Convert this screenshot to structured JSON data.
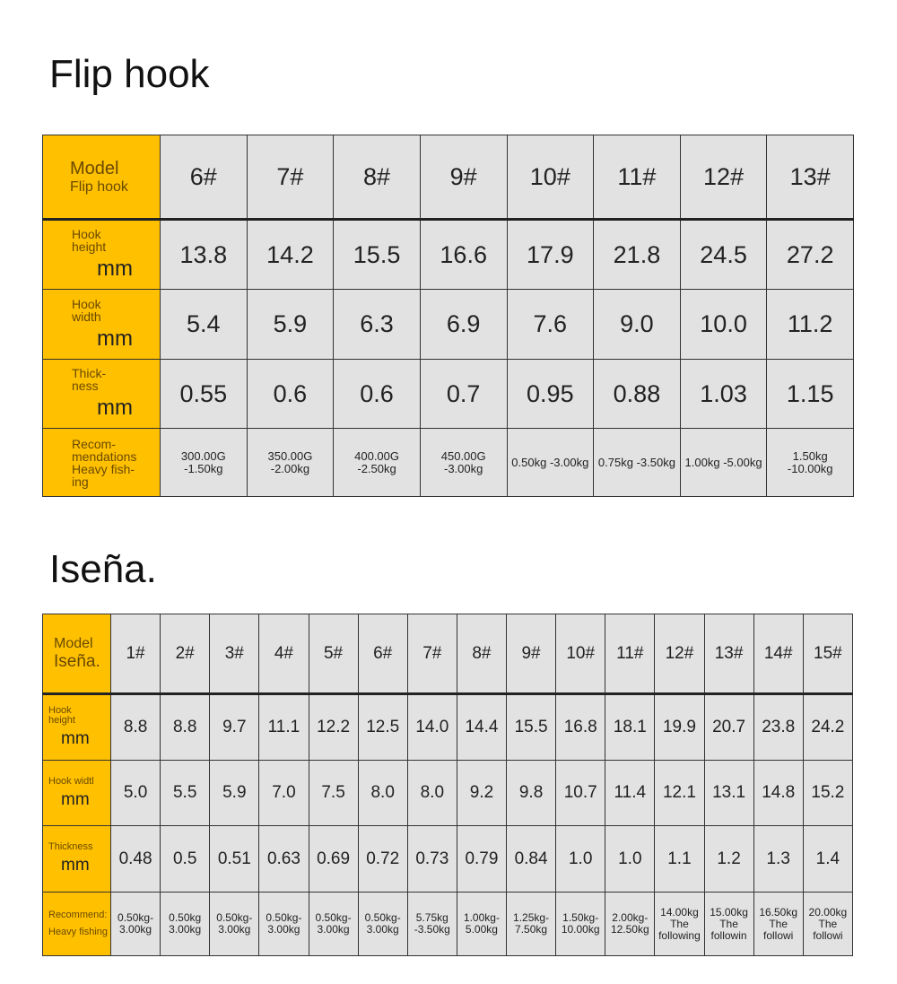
{
  "tables": [
    {
      "title": "Flip hook",
      "header_label": [
        "Model",
        "Flip hook"
      ],
      "columns": [
        "6#",
        "7#",
        "8#",
        "9#",
        "10#",
        "11#",
        "12#",
        "13#"
      ],
      "rows": [
        {
          "label": [
            "Hook",
            "height"
          ],
          "unit": "mm",
          "values": [
            "13.8",
            "14.2",
            "15.5",
            "16.6",
            "17.9",
            "21.8",
            "24.5",
            "27.2"
          ]
        },
        {
          "label": [
            "Hook",
            "width"
          ],
          "unit": "mm",
          "values": [
            "5.4",
            "5.9",
            "6.3",
            "6.9",
            "7.6",
            "9.0",
            "10.0",
            "11.2"
          ]
        },
        {
          "label": [
            "Thick-",
            "ness"
          ],
          "unit": "mm",
          "values": [
            "0.55",
            "0.6",
            "0.6",
            "0.7",
            "0.95",
            "0.88",
            "1.03",
            "1.15"
          ]
        },
        {
          "label": [
            "Recom-",
            "mendations",
            "Heavy fish-",
            "ing"
          ],
          "unit": "",
          "recommend": true,
          "values": [
            [
              "300.00G",
              "-1.50kg"
            ],
            [
              "350.00G",
              "-2.00kg"
            ],
            [
              "400.00G",
              "-2.50kg"
            ],
            [
              "450.00G",
              "-3.00kg"
            ],
            [
              "0.50kg -3.00kg"
            ],
            [
              "0.75kg -3.50kg"
            ],
            [
              "1.00kg -5.00kg"
            ],
            [
              "1.50kg -10.00kg"
            ]
          ]
        }
      ]
    },
    {
      "title": "Iseña.",
      "header_label": [
        "Model",
        "Iseña."
      ],
      "columns": [
        "1#",
        "2#",
        "3#",
        "4#",
        "5#",
        "6#",
        "7#",
        "8#",
        "9#",
        "10#",
        "11#",
        "12#",
        "13#",
        "14#",
        "15#"
      ],
      "rows": [
        {
          "label": [
            "Hook",
            "height"
          ],
          "unit": "mm",
          "values": [
            "8.8",
            "8.8",
            "9.7",
            "11.1",
            "12.2",
            "12.5",
            "14.0",
            "14.4",
            "15.5",
            "16.8",
            "18.1",
            "19.9",
            "20.7",
            "23.8",
            "24.2"
          ]
        },
        {
          "label": [
            "Hook widtl"
          ],
          "unit": "mm",
          "values": [
            "5.0",
            "5.5",
            "5.9",
            "7.0",
            "7.5",
            "8.0",
            "8.0",
            "9.2",
            "9.8",
            "10.7",
            "11.4",
            "12.1",
            "13.1",
            "14.8",
            "15.2"
          ]
        },
        {
          "label": [
            "Thickness"
          ],
          "unit": "mm",
          "values": [
            "0.48",
            "0.5",
            "0.51",
            "0.63",
            "0.69",
            "0.72",
            "0.73",
            "0.79",
            "0.84",
            "1.0",
            "1.0",
            "1.1",
            "1.2",
            "1.3",
            "1.4"
          ]
        },
        {
          "label": [
            "Recommend:",
            "Heavy fishing"
          ],
          "unit": "",
          "recommend": true,
          "values": [
            [
              "0.50kg-",
              "3.00kg"
            ],
            [
              "0.50kg",
              "3.00kg"
            ],
            [
              "0.50kg-",
              "3.00kg"
            ],
            [
              "0.50kg-",
              "3.00kg"
            ],
            [
              "0.50kg-",
              "3.00kg"
            ],
            [
              "0.50kg-",
              "3.00kg"
            ],
            [
              "5.75kg",
              "-3.50kg"
            ],
            [
              "1.00kg-",
              "5.00kg"
            ],
            [
              "1.25kg-",
              "7.50kg"
            ],
            [
              "1.50kg-",
              "10.00kg"
            ],
            [
              "2.00kg-",
              "12.50kg"
            ],
            [
              "14.00kg",
              "The following"
            ],
            [
              "15.00kg",
              "The followin"
            ],
            [
              "16.50kg",
              "The followi"
            ],
            [
              "20.00kg",
              "The followi"
            ]
          ]
        }
      ]
    }
  ],
  "colors": {
    "label_bg": "#ffc000",
    "cell_bg": "#e2e2e2",
    "border": "#333333"
  }
}
